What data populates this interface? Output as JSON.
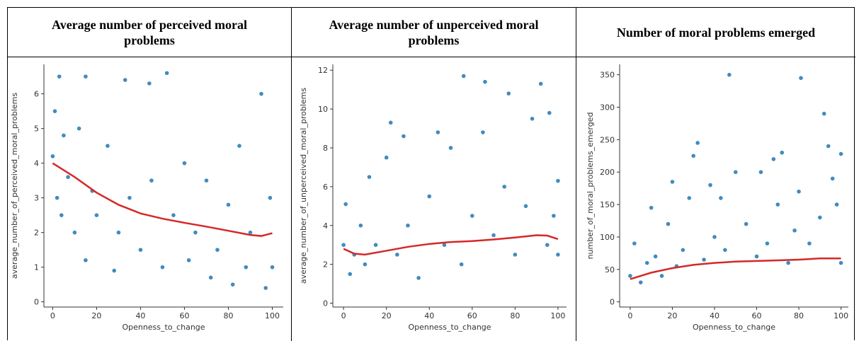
{
  "chart_data": [
    {
      "type": "scatter",
      "title": "Average number of perceived moral problems",
      "xlabel": "Openness_to_change",
      "ylabel": "average_number_of_perceived_moral_problems",
      "color": "#1f77b4",
      "x": [
        0,
        1,
        2,
        3,
        4,
        5,
        7,
        10,
        12,
        15,
        15,
        18,
        20,
        25,
        28,
        30,
        33,
        35,
        40,
        44,
        45,
        50,
        52,
        55,
        60,
        62,
        65,
        70,
        72,
        75,
        80,
        82,
        85,
        88,
        90,
        95,
        97,
        99,
        100
      ],
      "y": [
        4.2,
        5.5,
        3.0,
        6.5,
        2.5,
        4.8,
        3.6,
        2.0,
        5.0,
        6.5,
        1.2,
        3.2,
        2.5,
        4.5,
        0.9,
        2.0,
        6.4,
        3.0,
        1.5,
        6.3,
        3.5,
        1.0,
        6.6,
        2.5,
        4.0,
        1.2,
        2.0,
        3.5,
        0.7,
        1.5,
        2.8,
        0.5,
        4.5,
        1.0,
        2.0,
        6.0,
        0.4,
        3.0,
        1.0
      ],
      "trend": {
        "color": "#d62728",
        "x": [
          0,
          10,
          20,
          30,
          40,
          50,
          60,
          70,
          80,
          90,
          95,
          100
        ],
        "y": [
          4.0,
          3.6,
          3.15,
          2.8,
          2.55,
          2.4,
          2.28,
          2.17,
          2.05,
          1.93,
          1.9,
          1.98
        ]
      },
      "xlim": [
        -4,
        105
      ],
      "ylim": [
        -0.15,
        6.85
      ],
      "xticks": [
        0,
        20,
        40,
        60,
        80,
        100
      ],
      "yticks": [
        0,
        1,
        2,
        3,
        4,
        5,
        6
      ]
    },
    {
      "type": "scatter",
      "title": "Average number of unperceived moral problems",
      "xlabel": "Openness_to_change",
      "ylabel": "average_number_of_unperceived_moral_problems",
      "color": "#1f77b4",
      "x": [
        0,
        1,
        3,
        5,
        8,
        10,
        12,
        15,
        20,
        22,
        25,
        28,
        30,
        35,
        40,
        44,
        47,
        50,
        55,
        56,
        60,
        65,
        66,
        70,
        75,
        77,
        80,
        85,
        88,
        92,
        95,
        96,
        98,
        100,
        100
      ],
      "y": [
        3,
        5.1,
        1.5,
        2.5,
        4,
        2,
        6.5,
        3,
        7.5,
        9.3,
        2.5,
        8.6,
        4,
        1.3,
        5.5,
        8.8,
        3,
        8,
        2,
        11.7,
        4.5,
        8.8,
        11.4,
        3.5,
        6,
        10.8,
        2.5,
        5,
        9.5,
        11.3,
        3,
        9.8,
        4.5,
        2.5,
        6.3
      ],
      "trend": {
        "color": "#d62728",
        "x": [
          0,
          5,
          10,
          20,
          30,
          40,
          50,
          60,
          70,
          80,
          90,
          95,
          100
        ],
        "y": [
          2.8,
          2.55,
          2.5,
          2.7,
          2.9,
          3.05,
          3.15,
          3.2,
          3.28,
          3.38,
          3.5,
          3.48,
          3.3
        ]
      },
      "xlim": [
        -5,
        104
      ],
      "ylim": [
        -0.2,
        12.3
      ],
      "xticks": [
        0,
        20,
        40,
        60,
        80,
        100
      ],
      "yticks": [
        0,
        2,
        4,
        6,
        8,
        10,
        12
      ]
    },
    {
      "type": "scatter",
      "title": "Number of moral problems emerged",
      "xlabel": "Openness_to_change",
      "ylabel": "number_of_moral_problems_emerged",
      "color": "#1f77b4",
      "x": [
        0,
        2,
        5,
        8,
        10,
        12,
        15,
        18,
        20,
        22,
        25,
        28,
        30,
        32,
        35,
        38,
        40,
        43,
        45,
        47,
        50,
        55,
        60,
        62,
        65,
        68,
        70,
        72,
        75,
        78,
        80,
        81,
        85,
        90,
        92,
        94,
        96,
        98,
        100,
        100
      ],
      "y": [
        40,
        90,
        30,
        60,
        145,
        70,
        40,
        120,
        185,
        55,
        80,
        160,
        225,
        245,
        65,
        180,
        100,
        160,
        80,
        350,
        200,
        120,
        70,
        200,
        90,
        220,
        150,
        230,
        60,
        110,
        170,
        345,
        90,
        130,
        290,
        240,
        190,
        150,
        228,
        60
      ],
      "trend": {
        "color": "#d62728",
        "x": [
          0,
          10,
          20,
          30,
          40,
          50,
          60,
          70,
          80,
          90,
          100
        ],
        "y": [
          35,
          45,
          52,
          57,
          60,
          62,
          63,
          64,
          65,
          67,
          67
        ]
      },
      "xlim": [
        -5,
        103.5
      ],
      "ylim": [
        -8,
        366
      ],
      "xticks": [
        0,
        20,
        40,
        60,
        80,
        100
      ],
      "yticks": [
        0,
        50,
        100,
        150,
        200,
        250,
        300,
        350
      ]
    }
  ]
}
